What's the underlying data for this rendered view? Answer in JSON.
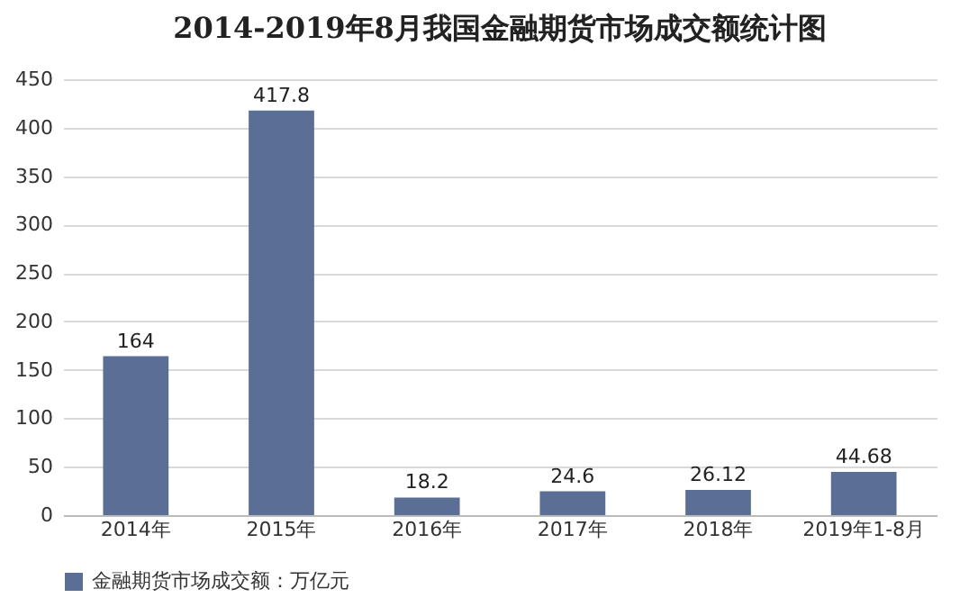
{
  "chart_data": {
    "type": "bar",
    "title": "2014-2019年8月我国金融期货市场成交额统计图",
    "categories": [
      "2014年",
      "2015年",
      "2016年",
      "2017年",
      "2018年",
      "2019年1-8月"
    ],
    "series": [
      {
        "name": "金融期货市场成交额：万亿元",
        "color": "#5b6e95",
        "values": [
          164,
          417.8,
          18.2,
          24.6,
          26.12,
          44.68
        ]
      }
    ],
    "ylim": [
      0,
      450
    ],
    "yticks": [
      0,
      50,
      100,
      150,
      200,
      250,
      300,
      350,
      400,
      450
    ],
    "grid": "y",
    "legend": "bottom",
    "data_labels": true
  }
}
